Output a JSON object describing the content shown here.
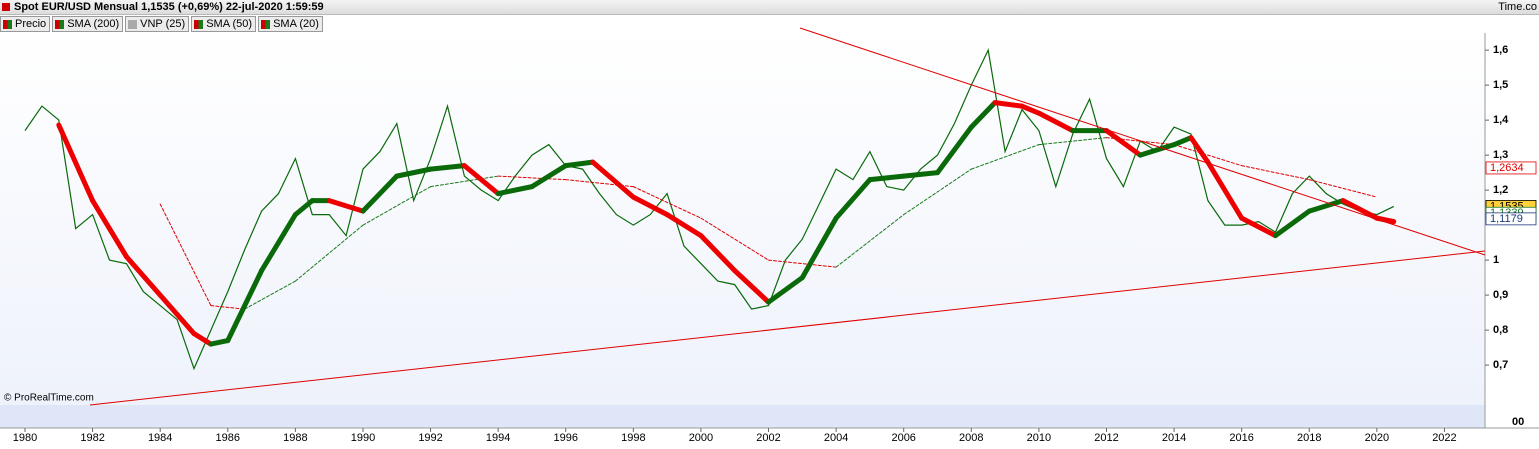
{
  "header": {
    "title": "Spot EUR/USD Mensual 1,1535 (+0,69%) 22-jul-2020 1:59:59",
    "brand": "Time.co"
  },
  "legend": [
    "Precio",
    "SMA (200)",
    "VNP (25)",
    "SMA (50)",
    "SMA (20)"
  ],
  "watermark": "© ProRealTime.com",
  "volume_axis_label": "00",
  "chart_data": {
    "type": "line",
    "xlim": [
      1979.26,
      2023.2
    ],
    "xticks": [
      1980,
      1982,
      1984,
      1986,
      1988,
      1990,
      1992,
      1994,
      1996,
      1998,
      2000,
      2002,
      2004,
      2006,
      2008,
      2010,
      2012,
      2014,
      2016,
      2018,
      2020,
      2022
    ],
    "ylim": [
      0.586,
      1.649
    ],
    "yticks": [
      {
        "value": 0.7,
        "label": "0,7"
      },
      {
        "value": 0.8,
        "label": "0,8"
      },
      {
        "value": 0.9,
        "label": "0,9"
      },
      1,
      {
        "value": 1.2,
        "label": "1,2"
      },
      {
        "value": 1.3,
        "label": "1,3"
      },
      {
        "value": 1.4,
        "label": "1,4"
      },
      {
        "value": 1.5,
        "label": "1,5"
      },
      {
        "value": 1.6,
        "label": "1,6"
      }
    ],
    "price_labels": [
      {
        "value": 1.2634,
        "label": "1,2634",
        "color": "#e00000",
        "bg": "#ffffff"
      },
      {
        "value": 1.1535,
        "label": "1,1535",
        "color": "#000000",
        "bg": "#ffd23c"
      },
      {
        "value": 1.1339,
        "label": "1,1339",
        "color": "#1a7a1a",
        "bg": "#ffffff"
      },
      {
        "value": 1.1179,
        "label": "1,1179",
        "color": "#1a3a7a",
        "bg": "#ffffff"
      }
    ],
    "series": [
      {
        "name": "Precio",
        "color": "#0a6a0a",
        "width": 1.2,
        "x": [
          1980.0,
          1980.5,
          1981.0,
          1981.5,
          1982.0,
          1982.5,
          1983.0,
          1983.5,
          1984.0,
          1984.5,
          1985.0,
          1985.5,
          1986.0,
          1986.5,
          1987.0,
          1987.5,
          1988.0,
          1988.5,
          1989.0,
          1989.5,
          1990.0,
          1990.5,
          1991.0,
          1991.5,
          1992.0,
          1992.5,
          1993.0,
          1993.5,
          1994.0,
          1994.5,
          1995.0,
          1995.5,
          1996.0,
          1996.5,
          1997.0,
          1997.5,
          1998.0,
          1998.5,
          1999.0,
          1999.5,
          2000.0,
          2000.5,
          2001.0,
          2001.5,
          2002.0,
          2002.5,
          2003.0,
          2003.5,
          2004.0,
          2004.5,
          2005.0,
          2005.5,
          2006.0,
          2006.5,
          2007.0,
          2007.5,
          2008.0,
          2008.5,
          2009.0,
          2009.5,
          2010.0,
          2010.5,
          2011.0,
          2011.5,
          2012.0,
          2012.5,
          2013.0,
          2013.5,
          2014.0,
          2014.5,
          2015.0,
          2015.5,
          2016.0,
          2016.5,
          2017.0,
          2017.5,
          2018.0,
          2018.5,
          2019.0,
          2019.5,
          2020.0,
          2020.5
        ],
        "values": [
          1.37,
          1.44,
          1.4,
          1.09,
          1.13,
          1.0,
          0.99,
          0.91,
          0.87,
          0.83,
          0.69,
          0.8,
          0.91,
          1.03,
          1.14,
          1.19,
          1.29,
          1.13,
          1.13,
          1.07,
          1.26,
          1.31,
          1.39,
          1.17,
          1.29,
          1.44,
          1.24,
          1.2,
          1.17,
          1.24,
          1.3,
          1.33,
          1.27,
          1.26,
          1.19,
          1.13,
          1.1,
          1.13,
          1.19,
          1.04,
          0.99,
          0.94,
          0.93,
          0.86,
          0.87,
          1.0,
          1.06,
          1.16,
          1.26,
          1.23,
          1.31,
          1.21,
          1.2,
          1.26,
          1.3,
          1.39,
          1.5,
          1.6,
          1.31,
          1.43,
          1.37,
          1.21,
          1.36,
          1.46,
          1.29,
          1.21,
          1.34,
          1.31,
          1.38,
          1.36,
          1.17,
          1.1,
          1.1,
          1.11,
          1.08,
          1.19,
          1.24,
          1.19,
          1.16,
          1.14,
          1.13,
          1.1535
        ]
      },
      {
        "name": "SMA (50)",
        "up_color": "#1a7a1a",
        "down_color": "#e00000",
        "width": 1,
        "dashed": true,
        "x": [
          1984,
          1985.5,
          1986.5,
          1988,
          1990,
          1992,
          1994,
          1996,
          1998,
          2000,
          2002,
          2004,
          2006,
          2008,
          2010,
          2012,
          2014,
          2016,
          2018,
          2020
        ],
        "values": [
          1.16,
          0.87,
          0.86,
          0.94,
          1.1,
          1.21,
          1.24,
          1.23,
          1.21,
          1.12,
          1.0,
          0.98,
          1.13,
          1.26,
          1.33,
          1.35,
          1.33,
          1.27,
          1.23,
          1.18
        ]
      },
      {
        "name": "SMA (20)",
        "up_color": "#0a6a0a",
        "down_color": "#ee0000",
        "width": 5,
        "dashed": false,
        "x": [
          1981,
          1982,
          1983,
          1984,
          1985,
          1985.5,
          1986,
          1987,
          1988,
          1988.5,
          1989,
          1990,
          1991,
          1992,
          1993,
          1994,
          1995,
          1996,
          1996.8,
          1998,
          1999,
          2000,
          2001,
          2002,
          2003,
          2004,
          2005,
          2006,
          2007,
          2008,
          2008.7,
          2009.5,
          2010,
          2011,
          2012,
          2013,
          2014,
          2014.5,
          2015,
          2016,
          2017,
          2018,
          2019,
          2020,
          2020.5
        ],
        "values": [
          1.386,
          1.17,
          1.01,
          0.9,
          0.79,
          0.76,
          0.77,
          0.97,
          1.13,
          1.17,
          1.17,
          1.14,
          1.24,
          1.26,
          1.27,
          1.19,
          1.21,
          1.27,
          1.28,
          1.18,
          1.13,
          1.07,
          0.97,
          0.88,
          0.95,
          1.12,
          1.23,
          1.24,
          1.25,
          1.38,
          1.45,
          1.44,
          1.42,
          1.37,
          1.37,
          1.3,
          1.33,
          1.35,
          1.28,
          1.12,
          1.07,
          1.14,
          1.17,
          1.12,
          1.11
        ]
      }
    ]
  }
}
